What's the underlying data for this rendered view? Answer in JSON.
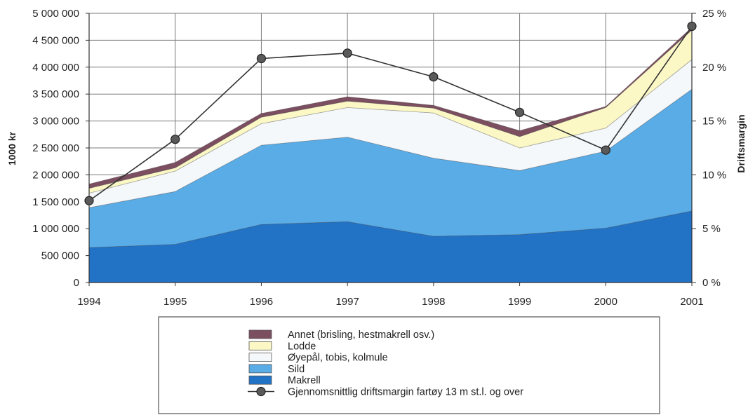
{
  "chart_data": {
    "type": "area",
    "x": [
      "1994",
      "1995",
      "1996",
      "1997",
      "1998",
      "1999",
      "2000",
      "2001"
    ],
    "stacked": true,
    "series": [
      {
        "name": "Makrell",
        "color": "#2272c6",
        "values": [
          650000,
          710000,
          1080000,
          1130000,
          860000,
          890000,
          1010000,
          1330000
        ]
      },
      {
        "name": "Sild",
        "color": "#5aace6",
        "values": [
          740000,
          980000,
          1470000,
          1570000,
          1450000,
          1190000,
          1430000,
          2260000
        ]
      },
      {
        "name": "Øyepål, tobis, kolmule",
        "color": "#f5f8fb",
        "values": [
          270000,
          380000,
          400000,
          550000,
          840000,
          420000,
          430000,
          550000
        ]
      },
      {
        "name": "Lodde",
        "color": "#fbf8c6",
        "values": [
          90000,
          60000,
          120000,
          120000,
          90000,
          210000,
          380000,
          550000
        ]
      },
      {
        "name": "Annet (brisling, hestmakrell osv.)",
        "color": "#7b4e60",
        "values": [
          80000,
          100000,
          70000,
          80000,
          50000,
          110000,
          20000,
          50000
        ]
      }
    ],
    "line_series": {
      "name": "Gjennomsnittlig driftsmargin fartøy 13 m st.l. og over",
      "color": "#333333",
      "axis": "right",
      "values": [
        7.6,
        13.3,
        20.8,
        21.3,
        19.1,
        15.8,
        12.3,
        23.8
      ]
    },
    "y_left": {
      "label": "1000 kr",
      "range": [
        0,
        5000000
      ],
      "ticks": [
        0,
        500000,
        1000000,
        1500000,
        2000000,
        2500000,
        3000000,
        3500000,
        4000000,
        4500000,
        5000000
      ],
      "tick_labels": [
        "0",
        "500 000",
        "1 000 000",
        "1 500 000",
        "2 000 000",
        "2 500 000",
        "3 000 000",
        "3 500 000",
        "4 000 000",
        "4 500 000",
        "5 000 000"
      ]
    },
    "y_right": {
      "label": "Driftsmargin",
      "range": [
        0,
        25
      ],
      "ticks": [
        0,
        5,
        10,
        15,
        20,
        25
      ],
      "tick_labels": [
        "0 %",
        "5 %",
        "10 %",
        "15 %",
        "20 %",
        "25 %"
      ]
    },
    "grid": true,
    "legend_position": "bottom-center",
    "legend_order": [
      "Annet (brisling, hestmakrell osv.)",
      "Lodde",
      "Øyepål, tobis, kolmule",
      "Sild",
      "Makrell",
      "Gjennomsnittlig driftsmargin fartøy 13 m st.l. og over"
    ]
  }
}
